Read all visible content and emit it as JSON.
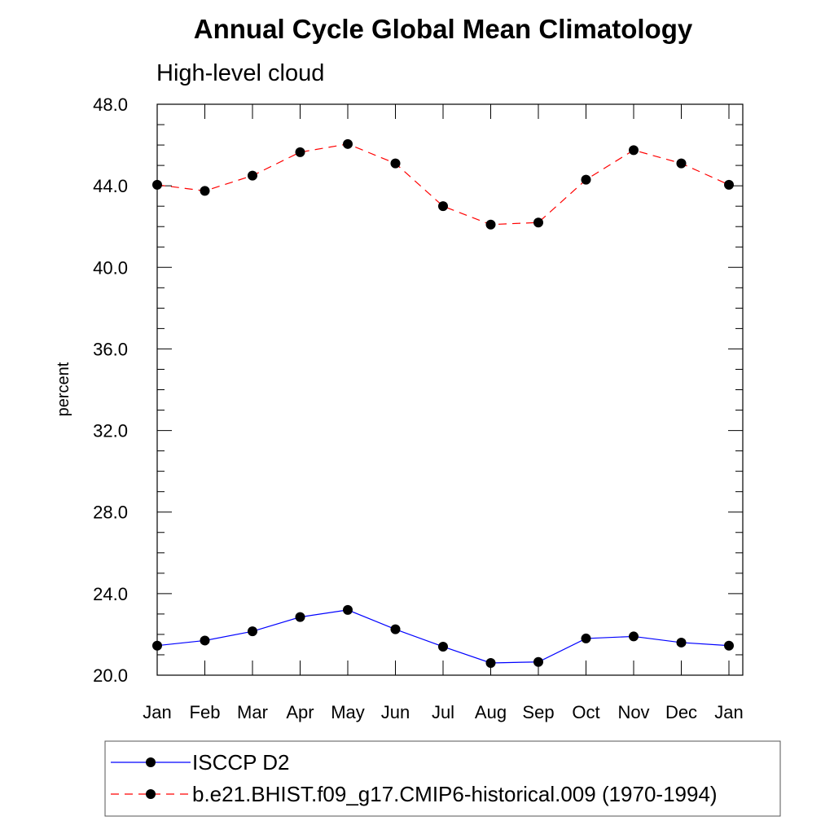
{
  "chart_data": {
    "type": "line",
    "title": "Annual Cycle Global Mean Climatology",
    "subtitle": "High-level cloud",
    "xlabel": "",
    "ylabel": "percent",
    "categories": [
      "Jan",
      "Feb",
      "Mar",
      "Apr",
      "May",
      "Jun",
      "Jul",
      "Aug",
      "Sep",
      "Oct",
      "Nov",
      "Dec",
      "Jan"
    ],
    "ylim": [
      20.0,
      48.0
    ],
    "yticks": [
      "20.0",
      "24.0",
      "28.0",
      "32.0",
      "36.0",
      "40.0",
      "44.0",
      "48.0"
    ],
    "grid": false,
    "legend_position": "bottom",
    "series": [
      {
        "name": "ISCCP D2",
        "color": "#0000ff",
        "dash": "solid",
        "marker": "filled-circle",
        "values": [
          21.45,
          21.7,
          22.15,
          22.85,
          23.2,
          22.25,
          21.4,
          20.6,
          20.65,
          21.8,
          21.9,
          21.6,
          21.45
        ]
      },
      {
        "name": "b.e21.BHIST.f09_g17.CMIP6-historical.009 (1970-1994)",
        "color": "#ff0000",
        "dash": "dashed",
        "marker": "filled-circle",
        "values": [
          44.05,
          43.75,
          44.5,
          45.65,
          46.05,
          45.1,
          43.0,
          42.1,
          42.2,
          44.3,
          45.75,
          45.1,
          44.05
        ]
      }
    ]
  }
}
